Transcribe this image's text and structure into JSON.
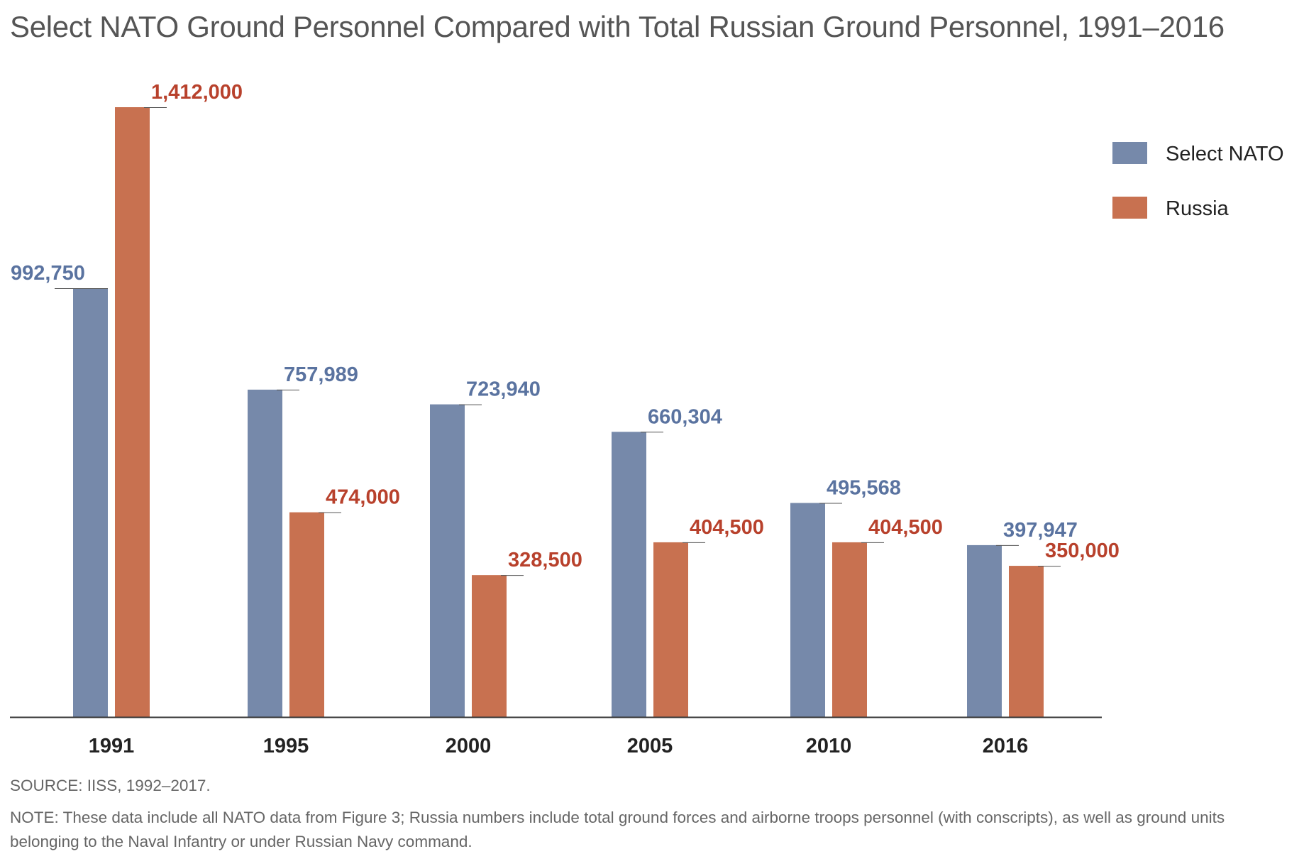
{
  "colors": {
    "nato": "#7689aa",
    "russia": "#c87150",
    "nato_label": "#5a73a0",
    "russia_label": "#b8412c",
    "axis": "#333333"
  },
  "notes": {
    "source": "SOURCE: IISS, 1992–2017.",
    "note": "NOTE: These data include all NATO data from Figure 3; Russia numbers include total ground forces and airborne troops personnel (with conscripts), as well as ground units belonging to the Naval Infantry or under Russian Navy command."
  },
  "chart_data": {
    "type": "bar",
    "title": "Select NATO Ground Personnel Compared with Total Russian Ground Personnel, 1991–2016",
    "xlabel": "",
    "ylabel": "",
    "ylim": [
      0,
      1412000
    ],
    "grid": false,
    "legend_position": "top-right",
    "categories": [
      "1991",
      "1995",
      "2000",
      "2005",
      "2010",
      "2016"
    ],
    "series": [
      {
        "name": "Select NATO",
        "color": "#7689aa",
        "values": [
          992750,
          757989,
          723940,
          660304,
          495568,
          397947
        ],
        "labels": [
          "992,750",
          "757,989",
          "723,940",
          "660,304",
          "495,568",
          "397,947"
        ]
      },
      {
        "name": "Russia",
        "color": "#c87150",
        "values": [
          1412000,
          474000,
          328500,
          404500,
          404500,
          350000
        ],
        "labels": [
          "1,412,000",
          "474,000",
          "328,500",
          "404,500",
          "404,500",
          "350,000"
        ]
      }
    ]
  }
}
